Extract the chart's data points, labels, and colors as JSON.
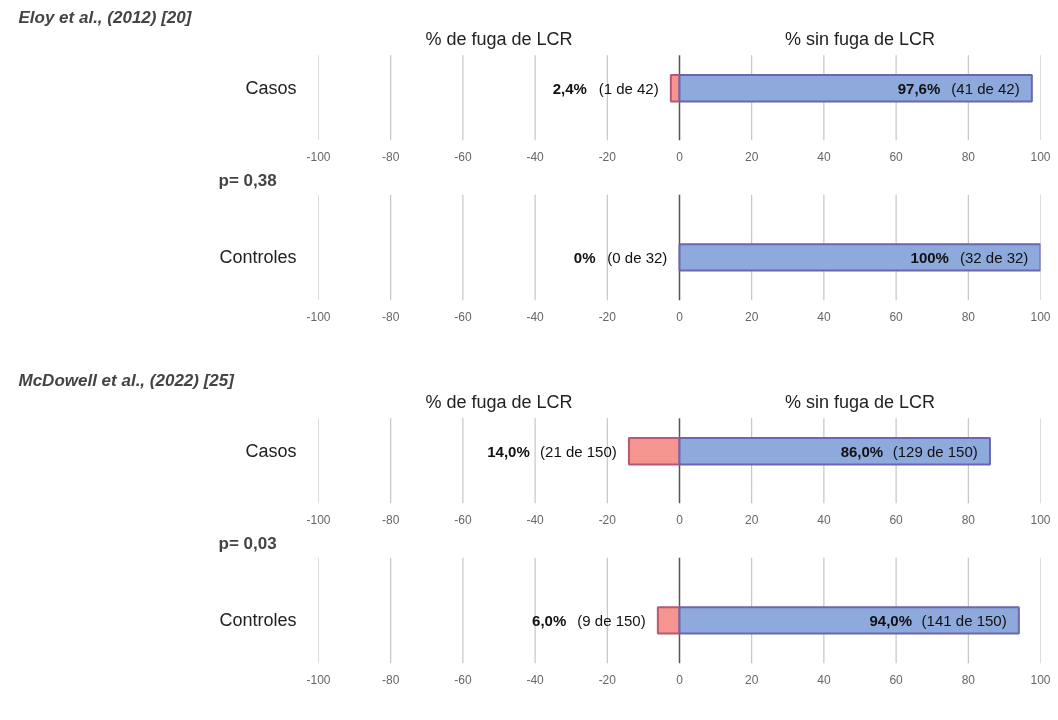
{
  "chart_data": [
    {
      "type": "bar",
      "orientation": "horizontal",
      "title": "Eloy et al., (2012) [20]",
      "annotations": [
        "% de fuga de LCR",
        "% sin fuga de LCR"
      ],
      "categories": [
        "Casos"
      ],
      "xlim": [
        -100,
        100
      ],
      "xticks": [
        -100,
        -80,
        -60,
        -40,
        -20,
        0,
        20,
        40,
        60,
        80,
        100
      ],
      "grid": "x",
      "series": [
        {
          "color": "#f4958f",
          "values": [
            2.4
          ],
          "base": [
            -2.4
          ],
          "value_labels": [
            "2,4% (1 de 42)"
          ]
        },
        {
          "color": "#8eaadc",
          "values": [
            97.6
          ],
          "value_labels": [
            "97,6% (41 de 42)"
          ]
        }
      ]
    },
    {
      "type": "bar",
      "orientation": "horizontal",
      "title": "p= 0,38",
      "categories": [
        "Controles"
      ],
      "xlim": [
        -100,
        100
      ],
      "xticks": [
        -100,
        -80,
        -60,
        -40,
        -20,
        0,
        20,
        40,
        60,
        80,
        100
      ],
      "grid": "x",
      "series": [
        {
          "color": "#f4958f",
          "values": [
            0
          ],
          "base": [
            null
          ],
          "value_labels": [
            "0% (0 de 32)"
          ]
        },
        {
          "color": "#8eaadc",
          "values": [
            100
          ],
          "value_labels": [
            "100% (32 de 32)"
          ]
        }
      ]
    },
    {
      "type": "bar",
      "orientation": "horizontal",
      "title": "McDowell et al., (2022) [25]",
      "annotations": [
        "% de fuga de LCR",
        "% sin fuga de LCR"
      ],
      "categories": [
        "Casos"
      ],
      "xlim": [
        -100,
        100
      ],
      "xticks": [
        -100,
        -80,
        -60,
        -40,
        -20,
        0,
        20,
        40,
        60,
        80,
        100
      ],
      "grid": "x",
      "series": [
        {
          "color": "#f4958f",
          "values": [
            14.0
          ],
          "base": [
            -14.0
          ],
          "value_labels": [
            "14,0% (21 de 150)"
          ]
        },
        {
          "color": "#8eaadc",
          "values": [
            86.0
          ],
          "value_labels": [
            "86,0% (129 de 150)"
          ]
        }
      ]
    },
    {
      "type": "bar",
      "orientation": "horizontal",
      "title": "p= 0,03",
      "categories": [
        "Controles"
      ],
      "xlim": [
        -100,
        100
      ],
      "xticks": [
        -100,
        -80,
        -60,
        -40,
        -20,
        0,
        20,
        40,
        60,
        80,
        100
      ],
      "grid": "x",
      "series": [
        {
          "color": "#f4958f",
          "values": [
            6.0
          ],
          "base": [
            -6.0
          ],
          "value_labels": [
            "6,0% (9 de 150)"
          ]
        },
        {
          "color": "#8eaadc",
          "values": [
            94.0
          ],
          "value_labels": [
            "94,0% (141 de 150)"
          ]
        }
      ]
    }
  ]
}
